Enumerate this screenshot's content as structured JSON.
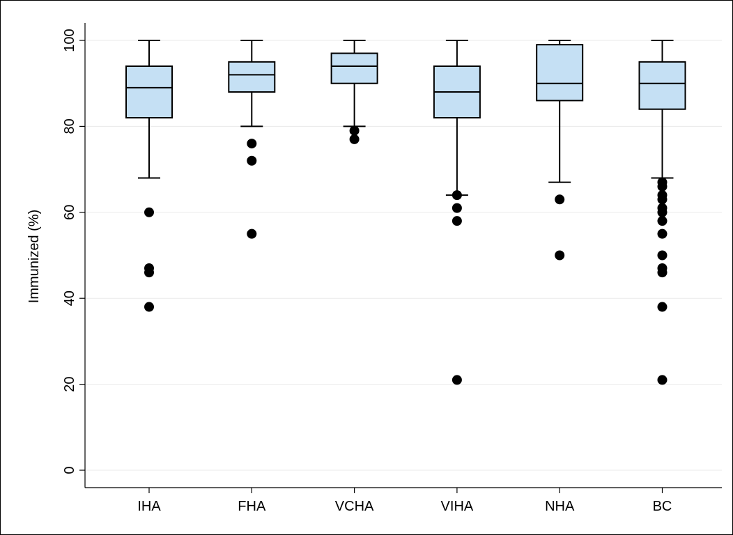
{
  "chart_data": {
    "type": "box",
    "ylabel": "Immunized (%)",
    "ylim": [
      0,
      104
    ],
    "yticks": [
      0,
      20,
      40,
      60,
      80,
      100
    ],
    "grid": true,
    "categories": [
      "IHA",
      "FHA",
      "VCHA",
      "VIHA",
      "NHA",
      "BC"
    ],
    "series": [
      {
        "category": "IHA",
        "whisker_low": 68,
        "q1": 82,
        "median": 89,
        "q3": 94,
        "whisker_high": 100,
        "outliers": [
          60,
          47,
          46,
          38
        ]
      },
      {
        "category": "FHA",
        "whisker_low": 80,
        "q1": 88,
        "median": 92,
        "q3": 95,
        "whisker_high": 100,
        "outliers": [
          76,
          72,
          55
        ]
      },
      {
        "category": "VCHA",
        "whisker_low": 80,
        "q1": 90,
        "median": 94,
        "q3": 97,
        "whisker_high": 100,
        "outliers": [
          79,
          77
        ]
      },
      {
        "category": "VIHA",
        "whisker_low": 64,
        "q1": 82,
        "median": 88,
        "q3": 94,
        "whisker_high": 100,
        "outliers": [
          64,
          61,
          58,
          21
        ]
      },
      {
        "category": "NHA",
        "whisker_low": 67,
        "q1": 86,
        "median": 90,
        "q3": 99,
        "whisker_high": 100,
        "outliers": [
          63,
          50
        ]
      },
      {
        "category": "BC",
        "whisker_low": 68,
        "q1": 84,
        "median": 90,
        "q3": 95,
        "whisker_high": 100,
        "outliers": [
          67,
          66,
          64,
          63,
          61,
          60,
          58,
          55,
          50,
          47,
          46,
          38,
          21
        ]
      }
    ],
    "colors": {
      "box_fill": "#c5e0f4",
      "stroke": "#000000",
      "grid": "#eaeaea",
      "outlier": "#000000"
    }
  }
}
